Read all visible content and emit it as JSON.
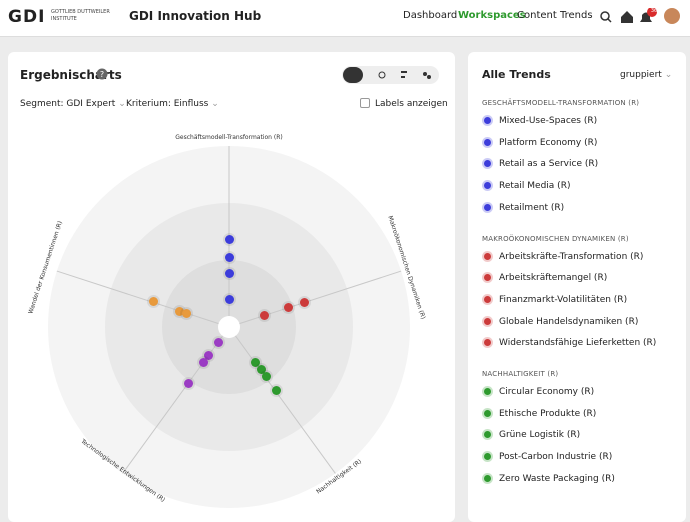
{
  "header": {
    "logo": "GDI",
    "logo_line_1": "GOTTLIEB DUTTWEILER",
    "logo_line_2": "INSTITUTE",
    "app_title": "GDI Innovation Hub",
    "nav": [
      "Dashboard",
      "Workspaces",
      "Content",
      "Trends"
    ],
    "active_nav": 1,
    "notification_count": "36"
  },
  "results": {
    "title": "Ergebnischarts",
    "segment": "Segment: GDI Expert",
    "criterion": "Kriterium: Einfluss",
    "labels_toggle": "Labels anzeigen",
    "axes": [
      {
        "label": "Geschäftsmodell-Transformation (R)",
        "color": "#3d3ddb"
      },
      {
        "label": "Makroökonomischen Dynamiken (R)",
        "color": "#cc3b3b"
      },
      {
        "label": "Nachhaltigkeit (R)",
        "color": "#2e9a2e"
      },
      {
        "label": "Technologische Entwicklungen (R)",
        "color": "#9b3dc4"
      },
      {
        "label": "Wandel der Konsumentinnen (R)",
        "color": "#e89a3c"
      }
    ]
  },
  "trends": {
    "title": "Alle Trends",
    "grouping": "gruppiert",
    "groups": [
      {
        "name": "GESCHÄFTSMODELL-TRANSFORMATION (R)",
        "color": "#3d3ddb",
        "items": [
          "Mixed-Use-Spaces (R)",
          "Platform Economy (R)",
          "Retail as a Service (R)",
          "Retail Media (R)",
          "Retailment (R)"
        ]
      },
      {
        "name": "MAKROÖKONOMISCHEN DYNAMIKEN (R)",
        "color": "#cc3b3b",
        "items": [
          "Arbeitskräfte-Transformation (R)",
          "Arbeitskräftemangel (R)",
          "Finanzmarkt-Volatilitäten (R)",
          "Globale Handelsdynamiken (R)",
          "Widerstandsfähige Lieferketten (R)"
        ]
      },
      {
        "name": "NACHHALTIGKEIT (R)",
        "color": "#2e9a2e",
        "items": [
          "Circular Economy (R)",
          "Ethische Produkte (R)",
          "Grüne Logistik (R)",
          "Post-Carbon Industrie (R)",
          "Zero Waste Packaging (R)"
        ]
      }
    ]
  }
}
